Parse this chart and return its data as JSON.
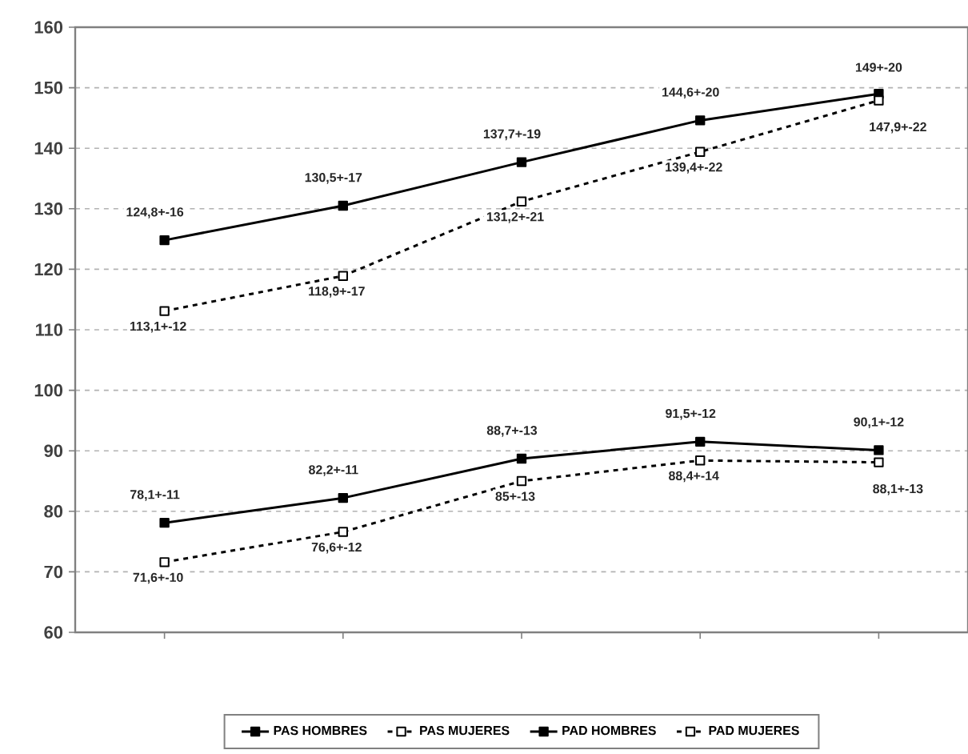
{
  "chart_data": {
    "type": "line",
    "categories": [
      null,
      null,
      null,
      null,
      null
    ],
    "series": [
      {
        "name": "PAS HOMBRES",
        "color": "#000000",
        "line_style": "solid",
        "marker": "square",
        "values": [
          124.8,
          130.5,
          137.7,
          144.6,
          149
        ],
        "value_labels": [
          "124,8+-16",
          "130,5+-17",
          "137,7+-19",
          "144,6+-20",
          "149+-20"
        ]
      },
      {
        "name": "PAS MUJERES",
        "color": "#000000",
        "line_style": "dashed",
        "marker": "square",
        "values": [
          113.1,
          118.9,
          131.2,
          139.4,
          147.9
        ],
        "value_labels": [
          "113,1+-12",
          "118,9+-17",
          "131,2+-21",
          "139,4+-22",
          "147,9+-22"
        ]
      },
      {
        "name": "PAD HOMBRES",
        "color": "#000000",
        "line_style": "solid",
        "marker": "square",
        "values": [
          78.1,
          82.2,
          88.7,
          91.5,
          90.1
        ],
        "value_labels": [
          "78,1+-11",
          "82,2+-11",
          "88,7+-13",
          "91,5+-12",
          "90,1+-12"
        ]
      },
      {
        "name": "PAD MUJERES",
        "color": "#000000",
        "line_style": "dashed",
        "marker": "square",
        "values": [
          71.6,
          76.6,
          85,
          88.4,
          88.1
        ],
        "value_labels": [
          "71,6+-10",
          "76,6+-12",
          "85+-13",
          "88,4+-14",
          "88,1+-13"
        ]
      }
    ],
    "ylim": [
      60,
      160
    ],
    "yticks": [
      60,
      70,
      80,
      90,
      100,
      110,
      120,
      130,
      140,
      150,
      160
    ],
    "grid": "y",
    "legend": "bottom"
  }
}
